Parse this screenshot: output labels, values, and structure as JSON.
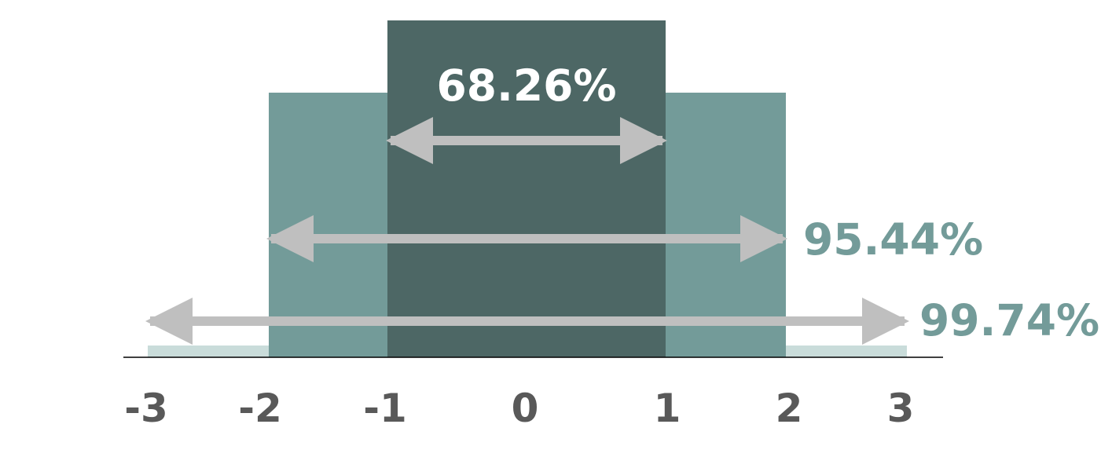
{
  "diagram": {
    "colors": {
      "outer": "#C9DCDA",
      "middle": "#739B99",
      "inner": "#4D6765",
      "arrow": "#BFBFBF",
      "axis_text": "#595959",
      "white_text": "#FFFFFF"
    },
    "bands": [
      {
        "name": "inner",
        "percent_label": "68.26%",
        "from": -1,
        "to": 1
      },
      {
        "name": "middle",
        "percent_label": "95.44%",
        "from": -2,
        "to": 2
      },
      {
        "name": "outer",
        "percent_label": "99.74%",
        "from": -3,
        "to": 3
      }
    ],
    "ticks": [
      "-3",
      "-2",
      "-1",
      "0",
      "1",
      "2",
      "3"
    ]
  }
}
